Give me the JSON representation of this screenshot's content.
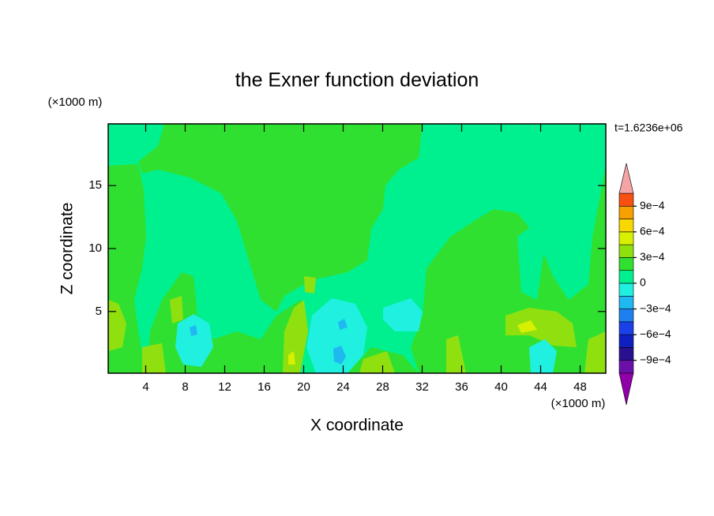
{
  "chart_data": {
    "type": "contour",
    "title": "the Exner function deviation",
    "xlabel": "X coordinate",
    "ylabel": "Z coordinate",
    "x_unit": "(×1000 m)",
    "y_unit": "(×1000 m)",
    "time_label": "t=1.6236e+06",
    "xlim": [
      0.2,
      50.6
    ],
    "ylim": [
      0.1,
      19.9
    ],
    "xticks": [
      4,
      8,
      12,
      16,
      20,
      24,
      28,
      32,
      36,
      40,
      44,
      48
    ],
    "yticks": [
      5,
      10,
      15
    ],
    "levels": [
      -0.00105,
      -0.0009,
      -0.00075,
      -0.0006,
      -0.00045,
      -0.0003,
      -0.00015,
      0,
      0.00015,
      0.0003,
      0.00045,
      0.0006,
      0.00075,
      0.0009,
      0.00105
    ],
    "level_colors": [
      "#6a10a8",
      "#2a1090",
      "#1020c0",
      "#1a40e8",
      "#1e80f0",
      "#20b8f0",
      "#20f0e0",
      "#00f090",
      "#30e030",
      "#90e010",
      "#d8f000",
      "#f8d800",
      "#f8a000",
      "#f85010"
    ],
    "extend_colors": [
      "#9000a8",
      "#f4a4a4"
    ],
    "colorbar_ticks": [
      {
        "value": -0.0009,
        "label": "−9e−4"
      },
      {
        "value": -0.0006,
        "label": "−6e−4"
      },
      {
        "value": -0.0003,
        "label": "−3e−4"
      },
      0,
      {
        "value": 0.0003,
        "label": "3e−4"
      },
      {
        "value": 0.0006,
        "label": "6e−4"
      },
      {
        "value": 0.0009,
        "label": "9e−4"
      }
    ]
  }
}
